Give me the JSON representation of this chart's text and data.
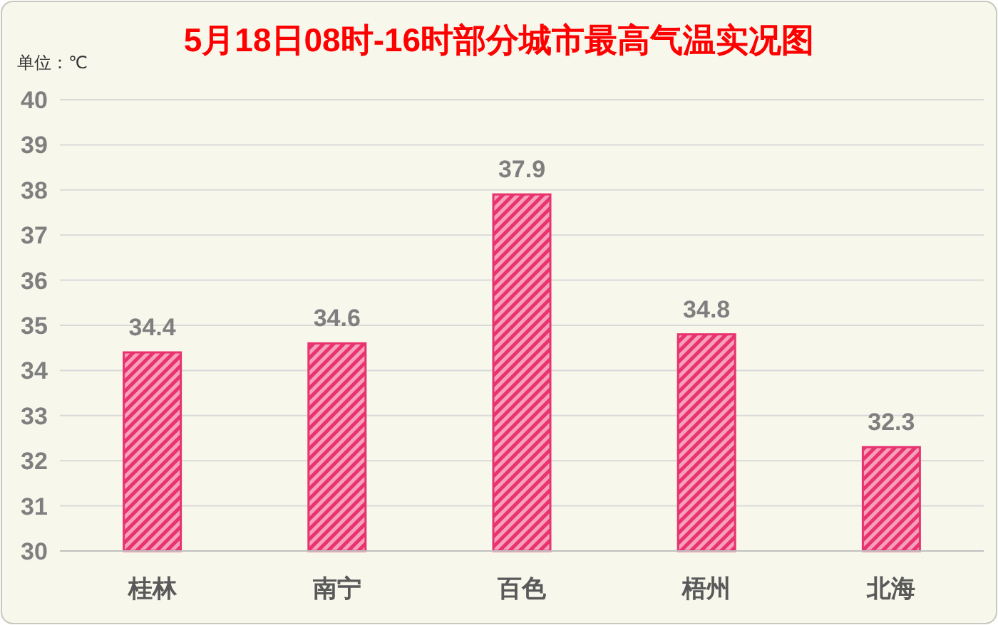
{
  "chart_data": {
    "type": "bar",
    "title": "5月18日08时-16时部分城市最高气温实况图",
    "ylabel": "单位：℃",
    "categories": [
      "桂林",
      "南宁",
      "百色",
      "梧州",
      "北海"
    ],
    "values": [
      34.4,
      34.6,
      37.9,
      34.8,
      32.3
    ],
    "color": "#e8336e",
    "ylim": [
      30,
      40
    ],
    "yticks": [
      30,
      31,
      32,
      33,
      34,
      35,
      36,
      37,
      38,
      39,
      40
    ],
    "grid": "y",
    "data_labels": true
  }
}
